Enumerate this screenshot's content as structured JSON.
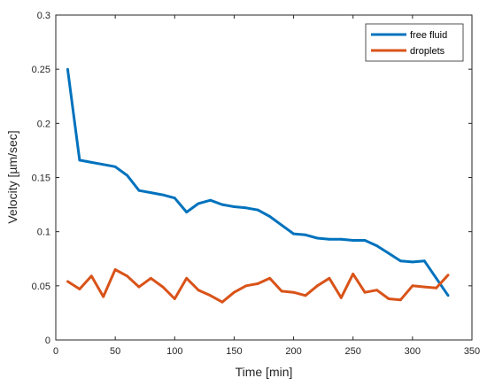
{
  "chart_data": {
    "type": "line",
    "title": "",
    "xlabel": "Time [min]",
    "ylabel": "Velocity [µm/sec]",
    "xlim": [
      0,
      350
    ],
    "ylim": [
      0,
      0.3
    ],
    "xticks": [
      0,
      50,
      100,
      150,
      200,
      250,
      300,
      350
    ],
    "yticks": [
      0,
      0.05,
      0.1,
      0.15,
      0.2,
      0.25,
      0.3
    ],
    "xtick_labels": [
      "0",
      "50",
      "100",
      "150",
      "200",
      "250",
      "300",
      "350"
    ],
    "ytick_labels": [
      "0",
      "0.05",
      "0.1",
      "0.15",
      "0.2",
      "0.25",
      "0.3"
    ],
    "grid": false,
    "legend_position": "top-right",
    "series": [
      {
        "name": "free fluid",
        "color": "#0072BD",
        "x": [
          10,
          20,
          30,
          40,
          50,
          60,
          70,
          80,
          90,
          100,
          110,
          120,
          130,
          140,
          150,
          160,
          170,
          180,
          190,
          200,
          210,
          220,
          230,
          240,
          250,
          260,
          270,
          280,
          290,
          300,
          310,
          320,
          330
        ],
        "y": [
          0.25,
          0.166,
          0.164,
          0.162,
          0.16,
          0.152,
          0.138,
          0.136,
          0.134,
          0.131,
          0.118,
          0.126,
          0.129,
          0.125,
          0.123,
          0.122,
          0.12,
          0.114,
          0.106,
          0.098,
          0.097,
          0.094,
          0.093,
          0.093,
          0.092,
          0.092,
          0.087,
          0.08,
          0.073,
          0.072,
          0.073,
          0.057,
          0.041
        ]
      },
      {
        "name": "droplets",
        "color": "#D95319",
        "x": [
          10,
          20,
          30,
          40,
          50,
          60,
          70,
          80,
          90,
          100,
          110,
          120,
          130,
          140,
          150,
          160,
          170,
          180,
          190,
          200,
          210,
          220,
          230,
          240,
          250,
          260,
          270,
          280,
          290,
          300,
          310,
          320,
          330
        ],
        "y": [
          0.054,
          0.047,
          0.059,
          0.04,
          0.065,
          0.059,
          0.049,
          0.057,
          0.049,
          0.038,
          0.057,
          0.046,
          0.041,
          0.035,
          0.044,
          0.05,
          0.052,
          0.057,
          0.045,
          0.044,
          0.041,
          0.05,
          0.057,
          0.039,
          0.061,
          0.044,
          0.046,
          0.038,
          0.037,
          0.05,
          0.049,
          0.048,
          0.06
        ]
      }
    ]
  }
}
